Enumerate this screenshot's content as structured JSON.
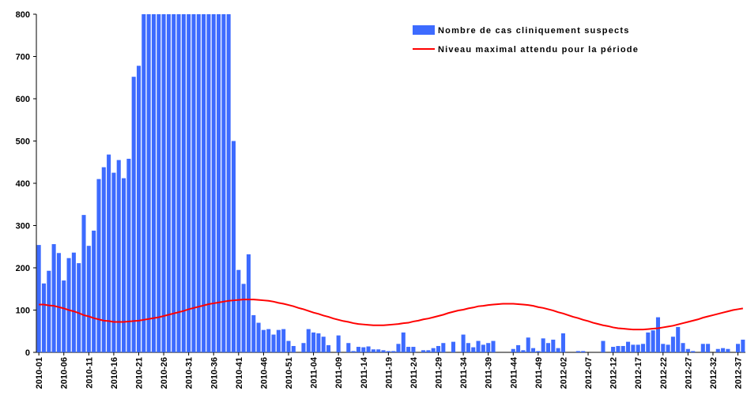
{
  "chart_data": {
    "type": "bar",
    "categories": [
      "2010-01",
      null,
      null,
      null,
      null,
      "2010-06",
      null,
      null,
      null,
      null,
      "2010-11",
      null,
      null,
      null,
      null,
      "2010-16",
      null,
      null,
      null,
      null,
      "2010-21",
      null,
      null,
      null,
      null,
      "2010-26",
      null,
      null,
      null,
      null,
      "2010-31",
      null,
      null,
      null,
      null,
      "2010-36",
      null,
      null,
      null,
      null,
      "2010-41",
      null,
      null,
      null,
      null,
      "2010-46",
      null,
      null,
      null,
      null,
      "2010-51",
      null,
      null,
      null,
      null,
      "2011-04",
      null,
      null,
      null,
      null,
      "2011-09",
      null,
      null,
      null,
      null,
      "2011-14",
      null,
      null,
      null,
      null,
      "2011-19",
      null,
      null,
      null,
      null,
      "2011-24",
      null,
      null,
      null,
      null,
      "2011-29",
      null,
      null,
      null,
      null,
      "2011-34",
      null,
      null,
      null,
      null,
      "2011-39",
      null,
      null,
      null,
      null,
      "2011-44",
      null,
      null,
      null,
      null,
      "2011-49",
      null,
      null,
      null,
      null,
      "2012-02",
      null,
      null,
      null,
      null,
      "2012-07",
      null,
      null,
      null,
      null,
      "2012-12",
      null,
      null,
      null,
      null,
      "2012-17",
      null,
      null,
      null,
      null,
      "2012-22",
      null,
      null,
      null,
      null,
      "2012-27",
      null,
      null,
      null,
      null,
      "2012-32",
      null,
      null,
      null,
      null,
      "2012-37",
      null
    ],
    "series": [
      {
        "name": "Nombre de cas cliniquement suspects",
        "type": "bar",
        "color": "#3d6bff",
        "values": [
          254,
          163,
          193,
          256,
          235,
          170,
          223,
          236,
          211,
          325,
          252,
          288,
          410,
          438,
          468,
          425,
          455,
          412,
          458,
          652,
          678,
          800,
          800,
          800,
          800,
          800,
          800,
          800,
          800,
          800,
          800,
          800,
          800,
          800,
          800,
          800,
          800,
          800,
          800,
          500,
          195,
          162,
          232,
          88,
          70,
          53,
          55,
          42,
          53,
          55,
          27,
          15,
          0,
          22,
          55,
          47,
          45,
          37,
          17,
          0,
          40,
          0,
          22,
          3,
          13,
          12,
          14,
          7,
          7,
          5,
          3,
          3,
          20,
          47,
          13,
          13,
          0,
          5,
          5,
          10,
          15,
          22,
          0,
          25,
          0,
          42,
          22,
          12,
          27,
          18,
          22,
          27,
          0,
          0,
          0,
          8,
          17,
          5,
          35,
          10,
          3,
          33,
          22,
          30,
          10,
          45,
          0,
          0,
          3,
          3,
          0,
          0,
          0,
          27,
          0,
          13,
          15,
          15,
          25,
          18,
          18,
          20,
          47,
          52,
          83,
          20,
          18,
          37,
          60,
          22,
          8,
          3,
          0,
          20,
          20,
          0,
          8,
          10,
          8,
          0,
          20,
          30
        ]
      },
      {
        "name": "Niveau maximal attendu pour la période",
        "type": "line",
        "color": "#ff0000",
        "values": [
          113,
          113,
          111,
          110,
          107,
          104,
          100,
          97,
          93,
          88,
          85,
          81,
          78,
          75,
          74,
          72,
          72,
          72,
          73,
          74,
          75,
          77,
          79,
          81,
          83,
          86,
          89,
          92,
          95,
          98,
          102,
          105,
          108,
          111,
          114,
          116,
          118,
          120,
          122,
          123,
          124,
          125,
          125,
          125,
          124,
          123,
          122,
          120,
          117,
          115,
          112,
          109,
          105,
          102,
          98,
          94,
          91,
          87,
          84,
          80,
          77,
          74,
          72,
          69,
          67,
          66,
          65,
          64,
          64,
          64,
          65,
          66,
          67,
          69,
          70,
          73,
          75,
          78,
          80,
          83,
          86,
          89,
          93,
          96,
          99,
          101,
          104,
          106,
          109,
          110,
          112,
          113,
          114,
          115,
          115,
          115,
          114,
          113,
          112,
          110,
          107,
          105,
          102,
          99,
          95,
          92,
          88,
          84,
          81,
          77,
          74,
          70,
          67,
          64,
          62,
          59,
          57,
          56,
          55,
          54,
          54,
          54,
          55,
          56,
          57,
          59,
          61,
          63,
          66,
          69,
          72,
          75,
          78,
          82,
          85,
          88,
          91,
          94,
          97,
          100,
          102,
          104
        ]
      }
    ],
    "ylim": [
      0,
      800
    ],
    "yticks": [
      0,
      100,
      200,
      300,
      400,
      500,
      600,
      700,
      800
    ],
    "grid": false,
    "legend": "top-right"
  }
}
